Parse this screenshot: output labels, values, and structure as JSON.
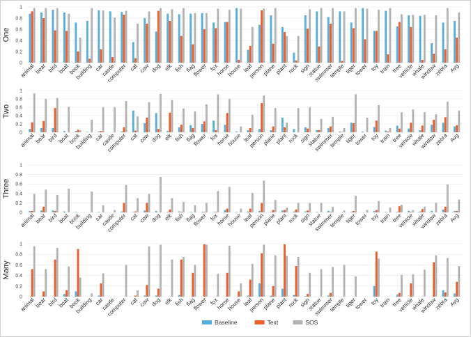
{
  "colors": {
    "Baseline": "#58aedb",
    "Text": "#ea5e2a",
    "SOS": "#b3b3b3",
    "avg_label": "#3a8a2a"
  },
  "chart_data": [
    {
      "type": "bar",
      "panel_label": "One",
      "ylim": [
        0,
        1
      ],
      "yticks": [
        "0",
        "0.2",
        "0.4",
        "0.6",
        "0.8",
        "1"
      ],
      "categories": [
        "animal",
        "bear",
        "bird",
        "boat",
        "book",
        "building",
        "car",
        "castle",
        "computer",
        "cat",
        "cow",
        "dog",
        "elk",
        "fish",
        "flag",
        "flower",
        "fox",
        "horse",
        "house",
        "leaf",
        "person",
        "plane",
        "plant",
        "rock",
        "sign",
        "statue",
        "swimmer",
        "temple",
        "tiger",
        "tower",
        "toy",
        "train",
        "tree",
        "vehicle",
        "whale",
        "window",
        "zebra",
        "Avg"
      ],
      "series": [
        {
          "name": "Baseline",
          "values": [
            0.88,
            0.9,
            0.95,
            0.9,
            0.72,
            0.75,
            0.94,
            0.92,
            0.91,
            0.37,
            0.8,
            0.56,
            0.88,
            0.87,
            0.88,
            0.89,
            0.72,
            0.73,
            0.98,
            0.23,
            0.68,
            0.85,
            0.64,
            0.18,
            0.85,
            0.92,
            0.82,
            0.92,
            0.72,
            0.98,
            0.57,
            0.93,
            0.65,
            0.85,
            0.84,
            0.35,
            0.72,
            0.75
          ]
        },
        {
          "name": "Text",
          "values": [
            0.92,
            0.8,
            0.58,
            0.57,
            0.2,
            0.07,
            0.24,
            0.1,
            0.86,
            0.08,
            0.7,
            0.93,
            0.75,
            0.48,
            0.33,
            0.6,
            0.62,
            0.73,
            0.05,
            0.3,
            0.94,
            0.34,
            0.55,
            0.04,
            0.61,
            0.29,
            0.7,
            0.03,
            0.62,
            0.42,
            0.57,
            0.15,
            0.73,
            0.64,
            0.05,
            0.16,
            0.24,
            0.45
          ]
        },
        {
          "name": "SOS",
          "values": [
            0.98,
            0.98,
            0.98,
            0.88,
            0.45,
            0.98,
            0.94,
            0.81,
            0.93,
            0.7,
            0.92,
            0.98,
            0.96,
            0.98,
            0.89,
            0.89,
            0.97,
            0.95,
            0.97,
            0.64,
            0.97,
            0.98,
            0.48,
            0.48,
            0.96,
            0.98,
            0.98,
            0.92,
            0.98,
            0.97,
            0.95,
            0.98,
            0.87,
            0.86,
            0.86,
            0.85,
            0.98,
            0.9
          ]
        }
      ]
    },
    {
      "type": "bar",
      "panel_label": "Two",
      "ylim": [
        0,
        1
      ],
      "yticks": [
        "0",
        "0.2",
        "0.4",
        "0.6",
        "0.8",
        "1"
      ],
      "categories": [
        "animal",
        "bear",
        "bird",
        "boat",
        "book",
        "building",
        "car",
        "castle",
        "computer",
        "cat",
        "cow",
        "dog",
        "elk",
        "fish",
        "flag",
        "flower",
        "fox",
        "horse",
        "house",
        "leaf",
        "person",
        "plane",
        "plant",
        "rock",
        "sign",
        "statue",
        "swimmer",
        "temple",
        "tiger",
        "tower",
        "toy",
        "train",
        "tree",
        "vehicle",
        "whale",
        "window",
        "zebra",
        "Avg"
      ],
      "series": [
        {
          "name": "Baseline",
          "values": [
            0.08,
            0.1,
            0.1,
            0.03,
            0.03,
            0.01,
            0.02,
            0.0,
            0.02,
            0.52,
            0.22,
            0.46,
            0.03,
            0.12,
            0.17,
            0.2,
            0.28,
            0.18,
            0.02,
            0.05,
            0.08,
            0.05,
            0.35,
            0.08,
            0.12,
            0.05,
            0.1,
            0.02,
            0.23,
            0.02,
            0.13,
            0.04,
            0.16,
            0.09,
            0.05,
            0.18,
            0.23,
            0.14
          ]
        },
        {
          "name": "Text",
          "values": [
            0.24,
            0.27,
            0.58,
            0.0,
            0.06,
            0.0,
            0.03,
            0.0,
            0.12,
            0.04,
            0.35,
            0.08,
            0.47,
            0.18,
            0.1,
            0.26,
            0.05,
            0.46,
            0.0,
            0.1,
            0.7,
            0.14,
            0.12,
            0.0,
            0.09,
            0.05,
            0.14,
            0.01,
            0.22,
            0.0,
            0.28,
            0.02,
            0.09,
            0.23,
            0.16,
            0.3,
            0.36,
            0.17
          ]
        },
        {
          "name": "SOS",
          "values": [
            0.93,
            0.8,
            0.82,
            0.61,
            0.05,
            0.3,
            0.6,
            0.6,
            0.75,
            0.38,
            0.72,
            0.92,
            0.77,
            0.57,
            0.5,
            0.67,
            0.91,
            0.8,
            0.14,
            0.42,
            0.88,
            0.58,
            0.23,
            0.58,
            0.6,
            0.32,
            0.37,
            0.1,
            0.91,
            0.35,
            0.65,
            0.1,
            0.48,
            0.55,
            0.48,
            0.43,
            0.73,
            0.52
          ]
        }
      ]
    },
    {
      "type": "bar",
      "panel_label": "Three",
      "ylim": [
        0,
        1
      ],
      "yticks": [
        "0",
        "0.2",
        "0.4",
        "0.6",
        "0.8",
        "1"
      ],
      "categories": [
        "animal",
        "bear",
        "bird",
        "boat",
        "book",
        "building",
        "car",
        "castle",
        "computer",
        "cat",
        "cow",
        "dog",
        "elk",
        "fish",
        "flag",
        "flower",
        "fox",
        "horse",
        "house",
        "leaf",
        "person",
        "plane",
        "plant",
        "rock",
        "sign",
        "statue",
        "swimmer",
        "temple",
        "tiger",
        "tower",
        "toy",
        "train",
        "tree",
        "vehicle",
        "whale",
        "window",
        "zebra",
        "Avg"
      ],
      "series": [
        {
          "name": "Baseline",
          "values": [
            0.03,
            0.04,
            0.04,
            0.02,
            0.01,
            0.0,
            0.01,
            0.0,
            0.02,
            0.01,
            0.04,
            0.03,
            0.01,
            0.02,
            0.01,
            0.01,
            0.01,
            0.05,
            0.01,
            0.02,
            0.03,
            0.01,
            0.04,
            0.02,
            0.02,
            0.01,
            0.03,
            0.0,
            0.01,
            0.0,
            0.03,
            0.01,
            0.01,
            0.03,
            0.02,
            0.03,
            0.06,
            0.03
          ]
        },
        {
          "name": "Text",
          "values": [
            0.03,
            0.12,
            0.03,
            0.0,
            0.0,
            0.0,
            0.0,
            0.0,
            0.2,
            0.02,
            0.2,
            0.0,
            0.06,
            0.01,
            0.0,
            0.01,
            0.01,
            0.08,
            0.0,
            0.08,
            0.2,
            0.05,
            0.05,
            0.06,
            0.04,
            0.0,
            0.01,
            0.0,
            0.03,
            0.0,
            0.05,
            0.0,
            0.13,
            0.01,
            0.07,
            0.0,
            0.12,
            0.03
          ]
        },
        {
          "name": "SOS",
          "values": [
            0.39,
            0.48,
            0.37,
            0.5,
            0.0,
            0.44,
            0.15,
            0.05,
            0.58,
            0.3,
            0.39,
            0.75,
            0.3,
            0.22,
            0.15,
            0.2,
            0.45,
            0.54,
            0.08,
            0.41,
            0.67,
            0.26,
            0.1,
            0.2,
            0.2,
            0.2,
            0.12,
            0.04,
            0.35,
            0.05,
            0.24,
            0.1,
            0.16,
            0.05,
            0.12,
            0.2,
            0.59,
            0.27
          ]
        }
      ]
    },
    {
      "type": "bar",
      "panel_label": "Many",
      "ylim": [
        0,
        1
      ],
      "yticks": [
        "0",
        "0.2",
        "0.4",
        "0.6",
        "0.8",
        "1"
      ],
      "categories": [
        "animal",
        "bear",
        "bird",
        "boat",
        "book",
        "building",
        "car",
        "castle",
        "computer",
        "cat",
        "cow",
        "dog",
        "elk",
        "fish",
        "flag",
        "flower",
        "fox",
        "horse",
        "house",
        "leaf",
        "person",
        "plane",
        "plant",
        "rock",
        "sign",
        "statue",
        "swimmer",
        "temple",
        "tiger",
        "tower",
        "toy",
        "train",
        "tree",
        "vehicle",
        "whale",
        "window",
        "zebra",
        "Avg"
      ],
      "series": [
        {
          "name": "Baseline",
          "values": [
            0.0,
            0.0,
            0.0,
            0.05,
            0.1,
            0.0,
            0.02,
            0.0,
            0.0,
            0.0,
            0.02,
            0.02,
            0.0,
            0.03,
            0.0,
            0.0,
            0.0,
            0.0,
            0.0,
            0.02,
            0.25,
            0.02,
            0.15,
            0.03,
            0.01,
            0.0,
            0.02,
            0.0,
            0.0,
            0.0,
            0.2,
            0.0,
            0.04,
            0.0,
            0.0,
            0.0,
            0.12,
            0.06
          ]
        },
        {
          "name": "Text",
          "values": [
            0.52,
            0.1,
            0.7,
            0.12,
            0.9,
            0.0,
            0.25,
            0.0,
            0.0,
            0.02,
            0.22,
            0.15,
            0.0,
            0.7,
            0.45,
            0.99,
            0.0,
            0.45,
            0.1,
            0.32,
            0.82,
            0.2,
            0.99,
            0.58,
            0.05,
            0.0,
            0.07,
            0.0,
            0.0,
            0.0,
            0.85,
            0.0,
            0.07,
            0.25,
            0.0,
            0.65,
            0.08,
            0.28
          ]
        },
        {
          "name": "SOS",
          "values": [
            0.95,
            0.52,
            0.92,
            0.57,
            0.36,
            0.06,
            0.44,
            0.0,
            0.6,
            0.12,
            0.95,
            0.98,
            0.7,
            0.75,
            0.6,
            0.98,
            0.43,
            0.96,
            0.25,
            0.62,
            0.98,
            0.78,
            0.77,
            0.75,
            0.45,
            0.52,
            0.56,
            0.6,
            0.38,
            0.0,
            0.72,
            0.0,
            0.41,
            0.42,
            0.51,
            0.78,
            0.73,
            0.58
          ]
        }
      ]
    }
  ],
  "legend": [
    {
      "name": "Baseline",
      "label": "Baseline"
    },
    {
      "name": "Text",
      "label": "Text"
    },
    {
      "name": "SOS",
      "label": "SOS"
    }
  ]
}
